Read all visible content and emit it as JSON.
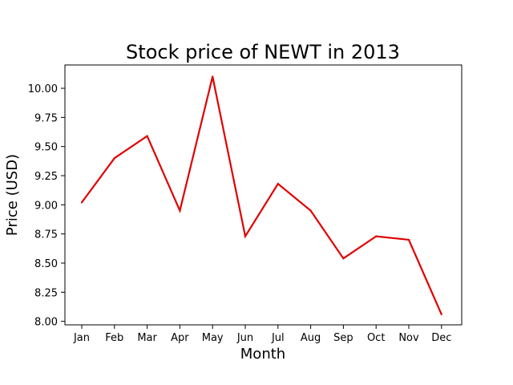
{
  "chart_data": {
    "type": "line",
    "title": "Stock price of NEWT in 2013",
    "xlabel": "Month",
    "ylabel": "Price (USD)",
    "categories": [
      "Jan",
      "Feb",
      "Mar",
      "Apr",
      "May",
      "Jun",
      "Jul",
      "Aug",
      "Sep",
      "Oct",
      "Nov",
      "Dec"
    ],
    "series": [
      {
        "values": [
          9.02,
          9.4,
          9.59,
          8.95,
          10.1,
          8.73,
          9.18,
          8.95,
          8.54,
          8.73,
          8.7,
          8.06
        ],
        "color": "#e00000"
      }
    ],
    "yticks": [
      "8.00",
      "8.25",
      "8.50",
      "8.75",
      "9.00",
      "9.25",
      "9.50",
      "9.75",
      "10.00"
    ],
    "ylim": [
      7.97,
      10.2
    ],
    "grid": false,
    "legend": "none"
  }
}
